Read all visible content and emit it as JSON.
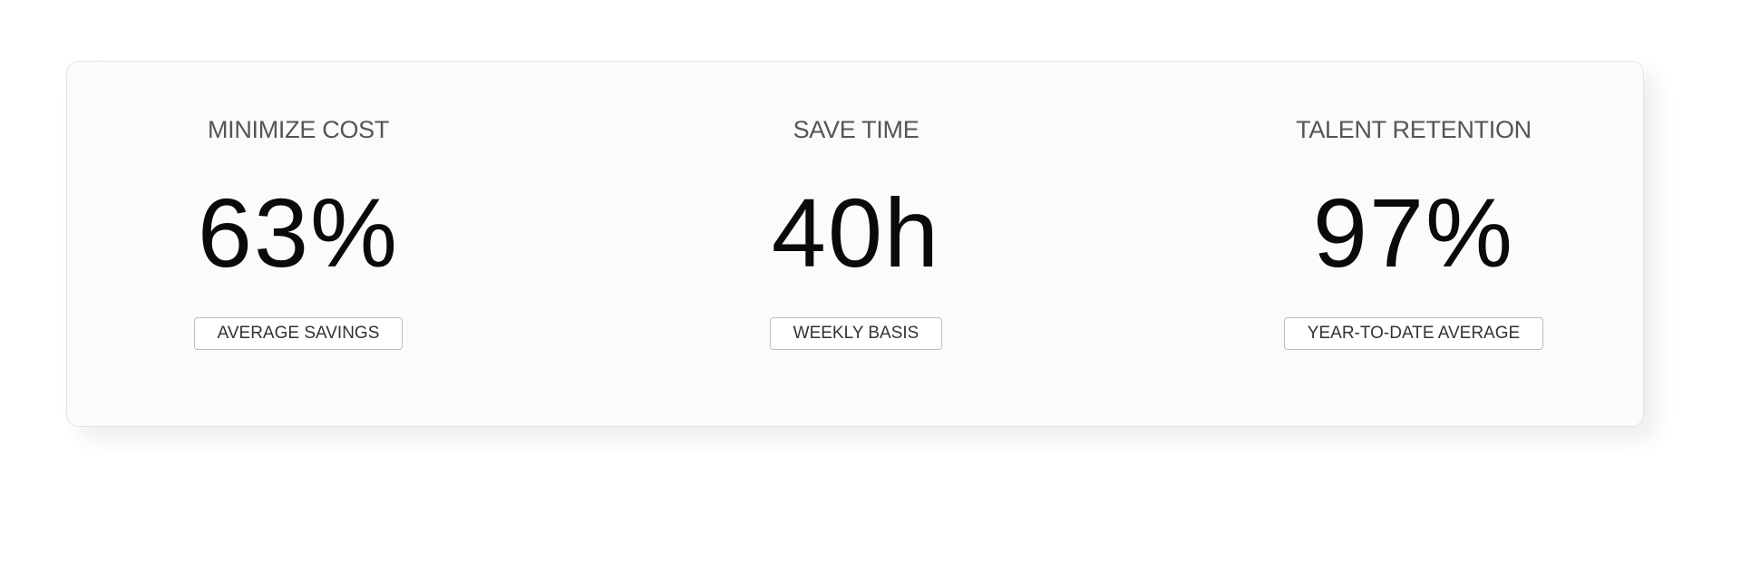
{
  "stats": [
    {
      "label": "MINIMIZE COST",
      "value": "63%",
      "note": "AVERAGE SAVINGS"
    },
    {
      "label": "SAVE TIME",
      "value": "40h",
      "note": "WEEKLY BASIS"
    },
    {
      "label": "TALENT RETENTION",
      "value": "97%",
      "note": "YEAR-TO-DATE AVERAGE"
    }
  ]
}
